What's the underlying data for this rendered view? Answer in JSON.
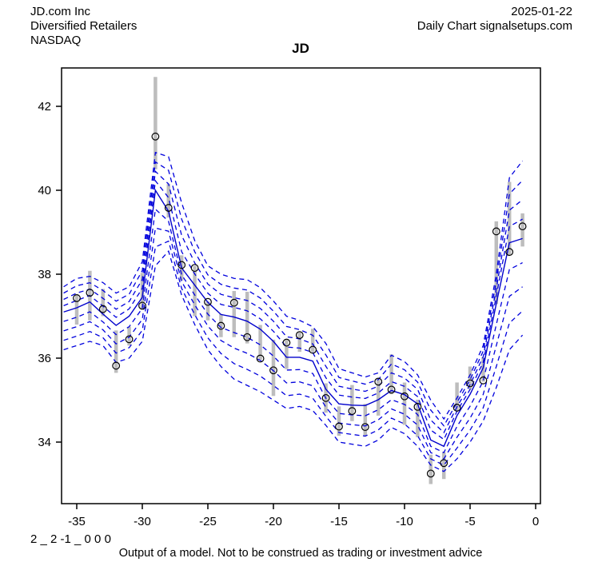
{
  "header": {
    "company": "JD.com Inc",
    "industry": "Diversified Retailers",
    "exchange": "NASDAQ",
    "date": "2025-01-22",
    "source": "Daily Chart signalsetups.com"
  },
  "title": "JD",
  "footer": {
    "model_code": "2 _ 2 -1 _ 0 0 0",
    "disclaimer": "Output of a model. Not to be construed as trading or investment advice"
  },
  "chart_data": {
    "type": "line",
    "title": "JD",
    "xlabel": "",
    "ylabel": "",
    "grid": false,
    "legend": "none",
    "x_ticks": [
      -35,
      -30,
      -25,
      -20,
      -15,
      -10,
      -5,
      0
    ],
    "y_ticks": [
      34,
      36,
      38,
      40,
      42
    ],
    "xlim": [
      -36.3,
      0.4
    ],
    "ylim": [
      32.5,
      42.9
    ],
    "colors": {
      "model_line": "#0000cc",
      "model_band": "#0000dd",
      "price_bar": "#bdbdbd",
      "close_marker": "#000000",
      "axis": "#000000"
    },
    "price_bars": {
      "x": [
        -35,
        -34,
        -33,
        -32,
        -31,
        -30,
        -29,
        -28,
        -27,
        -26,
        -25,
        -24,
        -23,
        -22,
        -21,
        -20,
        -19,
        -18,
        -17,
        -16,
        -15,
        -14,
        -13,
        -12,
        -11,
        -10,
        -9,
        -8,
        -7,
        -6,
        -5,
        -4,
        -3,
        -2,
        -1
      ],
      "high": [
        37.52,
        38.08,
        37.65,
        36.66,
        36.75,
        38.03,
        42.7,
        40.15,
        38.45,
        38.2,
        37.35,
        37.05,
        37.6,
        37.58,
        36.79,
        36.44,
        36.44,
        36.63,
        36.7,
        35.4,
        34.85,
        35.36,
        34.91,
        35.49,
        36.09,
        35.42,
        35.01,
        33.7,
        33.76,
        35.42,
        35.8,
        36.02,
        39.26,
        40.2,
        39.45
      ],
      "low": [
        36.8,
        36.9,
        37.0,
        35.65,
        36.3,
        37.15,
        40.5,
        39.35,
        37.85,
        37.0,
        36.9,
        36.5,
        36.5,
        36.35,
        35.96,
        35.1,
        35.74,
        36.15,
        36.15,
        34.7,
        34.15,
        34.5,
        34.15,
        34.63,
        35.14,
        34.41,
        34.12,
        33.0,
        33.12,
        34.75,
        35.26,
        35.44,
        37.29,
        38.45,
        38.66
      ],
      "close": [
        37.43,
        37.56,
        37.17,
        35.82,
        36.45,
        37.25,
        41.28,
        39.58,
        38.22,
        38.15,
        37.34,
        36.77,
        37.32,
        36.5,
        35.99,
        35.71,
        36.37,
        36.55,
        36.2,
        35.05,
        34.37,
        34.74,
        34.36,
        35.44,
        35.25,
        35.09,
        34.84,
        33.25,
        33.5,
        34.82,
        35.4,
        35.47,
        39.02,
        38.53,
        39.14
      ]
    },
    "model": {
      "x": [
        -36,
        -35,
        -34,
        -33,
        -32,
        -31,
        -30,
        -29,
        -28,
        -27,
        -26,
        -25,
        -24,
        -23,
        -22,
        -21,
        -20,
        -19,
        -18,
        -17,
        -16,
        -15,
        -14,
        -13,
        -12,
        -11,
        -10,
        -9,
        -8,
        -7,
        -6,
        -5,
        -4,
        -3,
        -2,
        -1
      ],
      "median": [
        37.1,
        37.2,
        37.34,
        37.05,
        36.78,
        37.0,
        37.45,
        40.0,
        39.5,
        38.15,
        37.74,
        37.33,
        37.04,
        36.98,
        36.88,
        36.69,
        36.4,
        36.02,
        36.02,
        35.93,
        35.26,
        34.91,
        34.88,
        34.87,
        35.01,
        35.23,
        35.13,
        34.91,
        34.05,
        33.9,
        34.63,
        35.14,
        35.77,
        37.3,
        38.75,
        38.85
      ],
      "upper_outer": [
        37.7,
        37.9,
        37.95,
        37.8,
        37.55,
        37.7,
        38.3,
        40.9,
        40.8,
        39.7,
        38.8,
        38.2,
        38.0,
        37.9,
        37.87,
        37.68,
        37.36,
        37.0,
        36.9,
        36.75,
        36.35,
        35.75,
        35.65,
        35.55,
        35.65,
        36.07,
        35.92,
        35.6,
        35.0,
        34.55,
        35.05,
        35.6,
        36.3,
        38.0,
        40.3,
        40.7
      ],
      "lower_outer": [
        36.2,
        36.3,
        36.4,
        36.3,
        35.9,
        36.0,
        36.4,
        38.2,
        38.55,
        37.5,
        36.8,
        36.2,
        35.8,
        35.5,
        35.35,
        35.2,
        35.0,
        34.8,
        34.85,
        34.75,
        34.4,
        34.0,
        33.95,
        33.9,
        34.05,
        34.35,
        34.2,
        33.9,
        33.45,
        33.3,
        33.6,
        34.0,
        34.5,
        35.3,
        36.2,
        36.55
      ],
      "band_fractions": [
        0.25,
        0.5,
        0.75,
        1.0
      ],
      "median_style": "solid",
      "band_style": "dashed"
    }
  }
}
